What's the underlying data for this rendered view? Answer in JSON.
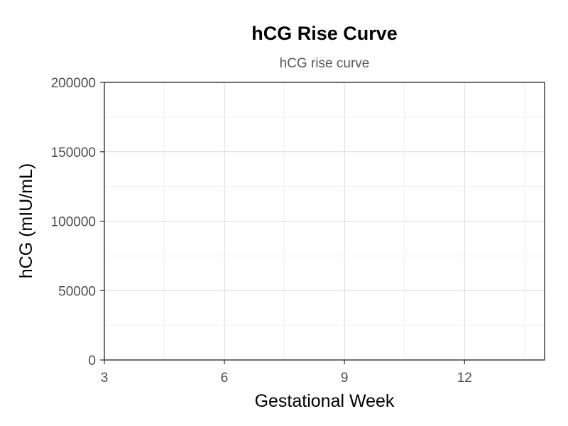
{
  "chart_data": {
    "type": "line",
    "title": "hCG Rise Curve",
    "subtitle": "hCG rise curve",
    "xlabel": "Gestational Week",
    "ylabel": "hCG (mIU/mL)",
    "xlim": [
      3,
      14
    ],
    "ylim": [
      0,
      200000
    ],
    "x_ticks": [
      3,
      6,
      9,
      12
    ],
    "y_ticks": [
      0,
      50000,
      100000,
      150000,
      200000
    ],
    "grid": true,
    "series": [],
    "colors": {
      "grid_major": "#d9d9d9",
      "grid_minor": "#ececec",
      "axis": "#333333",
      "tick_text": "#4d4d4d",
      "subtitle": "#595959"
    }
  }
}
